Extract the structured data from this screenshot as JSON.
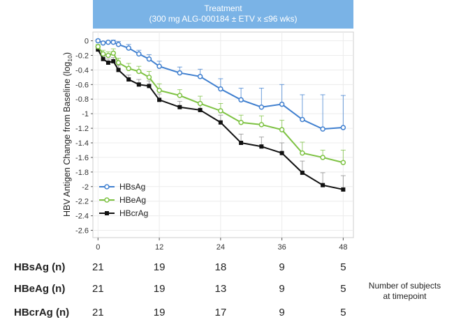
{
  "banner": {
    "line1": "Treatment",
    "line2": "(300 mg ALG-000184 ± ETV x ≤96 wks)"
  },
  "chart_data": {
    "type": "line",
    "ylabel_main": "HBV Antigen Change from Baseline (log",
    "ylabel_sub": "10",
    "ylabel_end": ")",
    "xlim": [
      -1,
      50
    ],
    "ylim": [
      -2.7,
      0.12
    ],
    "xticks": [
      0,
      12,
      24,
      36,
      48
    ],
    "yticks": [
      0,
      -0.2,
      -0.4,
      -0.6,
      -0.8,
      -1,
      -1.2,
      -1.4,
      -1.6,
      -1.8,
      -2,
      -2.2,
      -2.4,
      -2.6
    ],
    "legend_position": "bottom-left",
    "series": [
      {
        "name": "HBsAg",
        "color": "#3f7fcf",
        "marker": "circle",
        "x": [
          0,
          1,
          2,
          3,
          4,
          6,
          8,
          10,
          12,
          16,
          20,
          24,
          28,
          32,
          36,
          40,
          44,
          48
        ],
        "y": [
          0,
          -0.03,
          -0.02,
          -0.02,
          -0.05,
          -0.1,
          -0.18,
          -0.25,
          -0.35,
          -0.44,
          -0.49,
          -0.66,
          -0.81,
          -0.91,
          -0.87,
          -1.08,
          -1.21,
          -1.19
        ],
        "err_upper": [
          0.02,
          0.02,
          0.02,
          0.03,
          0.04,
          0.05,
          0.05,
          0.06,
          0.07,
          0.08,
          0.1,
          0.14,
          0.16,
          0.26,
          0.27,
          0.34,
          0.47,
          0.44
        ]
      },
      {
        "name": "HBeAg",
        "color": "#7dc242",
        "marker": "circle",
        "x": [
          0,
          1,
          2,
          3,
          4,
          6,
          8,
          10,
          12,
          16,
          20,
          24,
          28,
          32,
          36,
          40,
          44,
          48
        ],
        "y": [
          -0.08,
          -0.18,
          -0.2,
          -0.17,
          -0.3,
          -0.38,
          -0.42,
          -0.5,
          -0.68,
          -0.75,
          -0.86,
          -0.96,
          -1.12,
          -1.15,
          -1.22,
          -1.54,
          -1.6,
          -1.67
        ],
        "err_upper": [
          0.03,
          0.05,
          0.05,
          0.06,
          0.06,
          0.07,
          0.07,
          0.08,
          0.09,
          0.08,
          0.1,
          0.1,
          0.1,
          0.12,
          0.13,
          0.15,
          0.1,
          0.17
        ]
      },
      {
        "name": "HBcrAg",
        "color": "#111111",
        "marker": "square",
        "x": [
          0,
          1,
          2,
          3,
          4,
          6,
          8,
          10,
          12,
          16,
          20,
          24,
          28,
          32,
          36,
          40,
          44,
          48
        ],
        "y": [
          -0.12,
          -0.25,
          -0.3,
          -0.28,
          -0.4,
          -0.53,
          -0.6,
          -0.62,
          -0.81,
          -0.91,
          -0.95,
          -1.12,
          -1.4,
          -1.45,
          -1.54,
          -1.81,
          -1.98,
          -2.04
        ],
        "err_upper": [
          0.03,
          0.04,
          0.05,
          0.05,
          0.06,
          0.06,
          0.07,
          0.07,
          0.08,
          0.08,
          0.09,
          0.1,
          0.12,
          0.13,
          0.14,
          0.16,
          0.17,
          0.19
        ]
      }
    ]
  },
  "counts": {
    "x": [
      0,
      12,
      24,
      36,
      48
    ],
    "rows": [
      {
        "label": "HBsAg (n)",
        "values": [
          "21",
          "19",
          "18",
          "9",
          "5"
        ]
      },
      {
        "label": "HBeAg (n)",
        "values": [
          "21",
          "19",
          "13",
          "9",
          "5"
        ]
      },
      {
        "label": "HBcrAg (n)",
        "values": [
          "21",
          "19",
          "17",
          "9",
          "5"
        ]
      }
    ]
  },
  "note": {
    "line1": "Number of subjects",
    "line2": "at timepoint"
  }
}
